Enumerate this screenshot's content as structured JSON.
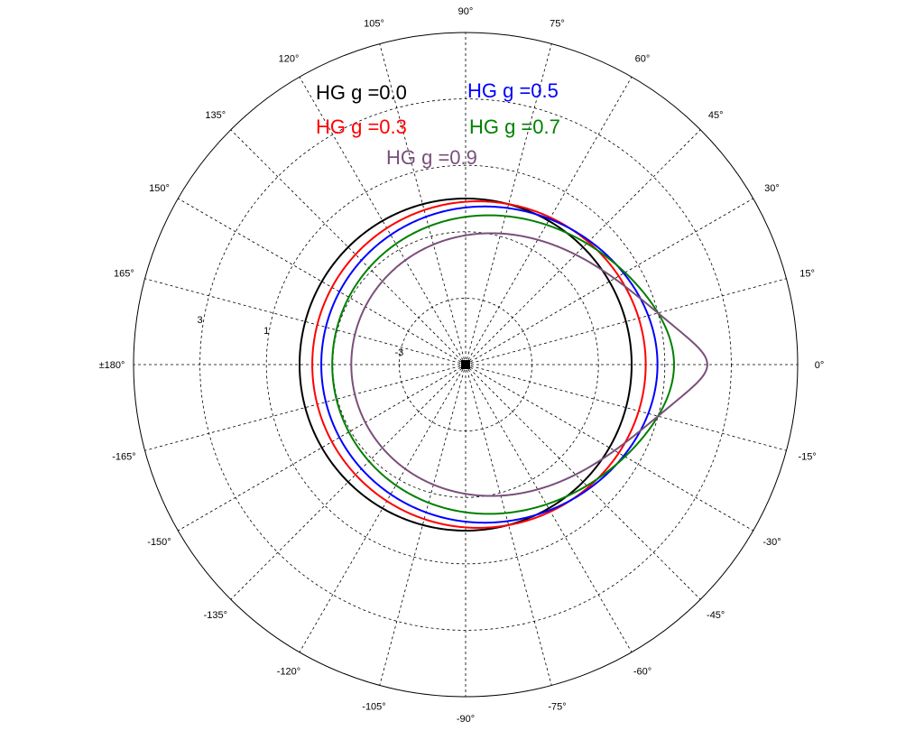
{
  "chart_data": {
    "type": "polar-line",
    "title": "",
    "angle_unit": "degrees",
    "angle_ticks": [
      {
        "deg": 0,
        "label": "0°"
      },
      {
        "deg": 15,
        "label": "15°"
      },
      {
        "deg": 30,
        "label": "30°"
      },
      {
        "deg": 45,
        "label": "45°"
      },
      {
        "deg": 60,
        "label": "60°"
      },
      {
        "deg": 75,
        "label": "75°"
      },
      {
        "deg": 90,
        "label": "90°"
      },
      {
        "deg": 105,
        "label": "105°"
      },
      {
        "deg": 120,
        "label": "120°"
      },
      {
        "deg": 135,
        "label": "135°"
      },
      {
        "deg": 150,
        "label": "150°"
      },
      {
        "deg": 165,
        "label": "165°"
      },
      {
        "deg": 180,
        "label": "±180°"
      },
      {
        "deg": -165,
        "label": "-165°"
      },
      {
        "deg": -150,
        "label": "-150°"
      },
      {
        "deg": -135,
        "label": "-135°"
      },
      {
        "deg": -120,
        "label": "-120°"
      },
      {
        "deg": -105,
        "label": "-105°"
      },
      {
        "deg": -90,
        "label": "-90°"
      },
      {
        "deg": -75,
        "label": "-75°"
      },
      {
        "deg": -60,
        "label": "-60°"
      },
      {
        "deg": -45,
        "label": "-45°"
      },
      {
        "deg": -30,
        "label": "-30°"
      },
      {
        "deg": -15,
        "label": "-15°"
      }
    ],
    "radial_scale": "log10",
    "radial_range": [
      -5,
      5
    ],
    "radial_rings": [
      -3,
      -1,
      1,
      3,
      5
    ],
    "radial_tick_labels": [
      {
        "value": -3,
        "label": "-3"
      },
      {
        "value": 1,
        "label": "1"
      },
      {
        "value": 3,
        "label": "3"
      }
    ],
    "grid": true,
    "series": [
      {
        "name": "HG g =0.0",
        "g": 0.0,
        "color": "#000000"
      },
      {
        "name": "HG g =0.3",
        "g": 0.3,
        "color": "#ff0000"
      },
      {
        "name": "HG g =0.5",
        "g": 0.5,
        "color": "#0000ff"
      },
      {
        "name": "HG g =0.7",
        "g": 0.7,
        "color": "#008000"
      },
      {
        "name": "HG g =0.9",
        "g": 0.9,
        "color": "#7a4f7a"
      }
    ],
    "legend": {
      "placement": "top-left",
      "items": [
        {
          "label": "HG g =0.0",
          "color": "#000000"
        },
        {
          "label": "HG g =0.5",
          "color": "#0000ff"
        },
        {
          "label": "HG g =0.3",
          "color": "#ff0000"
        },
        {
          "label": "HG g =0.7",
          "color": "#008000"
        },
        {
          "label": "HG g =0.9",
          "color": "#7a4f7a"
        }
      ]
    }
  }
}
